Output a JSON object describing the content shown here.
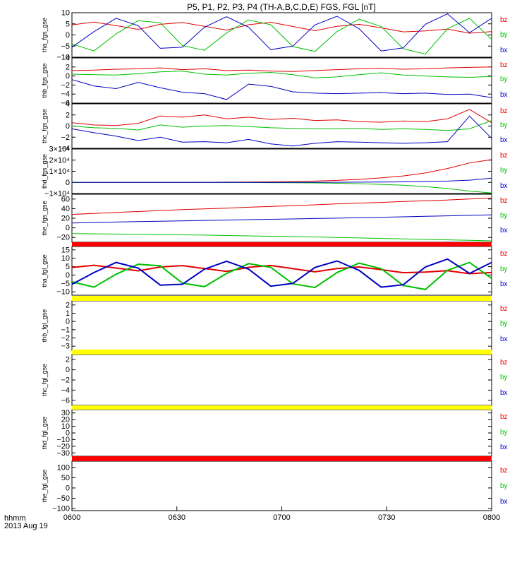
{
  "chart_data": {
    "type": "line",
    "title": "P5, P1, P2, P3, P4 (TH-A,B,C,D,E) FGS, FGL [nT]",
    "x_axis": {
      "label_line1": "hhmm",
      "label_line2": "2013 Aug 19",
      "range": [
        "06:00",
        "08:00"
      ],
      "ticks": [
        "0600",
        "0630",
        "0700",
        "0730",
        "0800"
      ]
    },
    "panels": [
      {
        "ylabel": "tha_fgs_gse",
        "ylim": [
          -10,
          10
        ],
        "ytick_values": [
          -10,
          -5,
          0,
          5,
          10
        ],
        "ytick_labels": [
          "−10",
          "−5",
          "0",
          "5",
          "10"
        ],
        "series": [
          {
            "name": "bz",
            "color": "#e00000",
            "values": [
              4.5,
              5.8,
              4.2,
              2.5,
              4.8,
              5.6,
              3.9,
              2.2,
              4.6,
              5.7,
              3.8,
              1.9,
              3.9,
              4.8,
              3.2,
              1.4,
              1.8,
              2.6,
              0.8,
              1.5
            ]
          },
          {
            "name": "by",
            "color": "#00c000",
            "values": [
              -4.0,
              -7.2,
              0.5,
              6.4,
              5.5,
              -4.8,
              -6.9,
              0.9,
              6.8,
              4.6,
              -5.2,
              -7.4,
              1.5,
              7.1,
              3.8,
              -6.2,
              -8.6,
              2.8,
              7.5,
              -2.0
            ]
          },
          {
            "name": "bx",
            "color": "#0000c0",
            "values": [
              -5.5,
              1.5,
              7.5,
              4.2,
              -6.0,
              -5.5,
              3.5,
              8.2,
              3.5,
              -6.6,
              -5.0,
              4.5,
              8.4,
              2.8,
              -7.2,
              -5.8,
              4.8,
              9.5,
              1.0,
              7.5
            ]
          }
        ]
      },
      {
        "ylabel": "thb_fgs_gse",
        "ylim": [
          -6,
          4
        ],
        "ytick_values": [
          -6,
          -4,
          -2,
          0,
          2,
          4
        ],
        "ytick_labels": [
          "−6",
          "−4",
          "−2",
          "0",
          "2",
          "4"
        ],
        "series": [
          {
            "name": "bz",
            "color": "#e00000",
            "values": [
              1.2,
              1.3,
              1.5,
              1.6,
              1.8,
              1.4,
              1.6,
              1.2,
              1.3,
              1.1,
              1.0,
              1.2,
              1.4,
              1.6,
              1.7,
              1.5,
              1.6,
              1.8,
              1.9,
              2.0
            ]
          },
          {
            "name": "by",
            "color": "#00c000",
            "values": [
              0.4,
              0.3,
              0.2,
              0.5,
              0.9,
              1.1,
              0.4,
              0.2,
              0.6,
              0.8,
              0.3,
              -0.4,
              -0.2,
              0.3,
              0.7,
              0.2,
              0.0,
              -0.2,
              -0.3,
              -0.1
            ]
          },
          {
            "name": "bx",
            "color": "#0000c0",
            "values": [
              -0.8,
              -2.2,
              -2.8,
              -1.4,
              -2.6,
              -3.6,
              -3.9,
              -5.2,
              -1.8,
              -2.3,
              -3.5,
              -3.8,
              -3.9,
              -3.8,
              -3.7,
              -3.9,
              -3.8,
              -4.1,
              -4.0,
              -4.8
            ]
          }
        ]
      },
      {
        "ylabel": "thc_fgs_gse",
        "ylim": [
          -4,
          4
        ],
        "ytick_values": [
          -4,
          -2,
          0,
          2,
          4
        ],
        "ytick_labels": [
          "−4",
          "−2",
          "0",
          "2",
          "4"
        ],
        "series": [
          {
            "name": "bz",
            "color": "#e00000",
            "values": [
              0.6,
              0.2,
              0.1,
              0.5,
              1.8,
              1.6,
              2.0,
              1.3,
              1.6,
              1.2,
              1.4,
              1.0,
              1.1,
              0.8,
              0.7,
              0.9,
              0.8,
              1.3,
              3.0,
              0.6
            ]
          },
          {
            "name": "by",
            "color": "#00c000",
            "values": [
              0.0,
              -0.3,
              -0.4,
              -0.7,
              0.2,
              -0.2,
              0.0,
              0.1,
              -0.1,
              -0.3,
              -0.4,
              -0.5,
              -0.5,
              -0.4,
              -0.6,
              -0.5,
              -0.6,
              -0.8,
              -0.5,
              1.0
            ]
          },
          {
            "name": "bx",
            "color": "#0000c0",
            "values": [
              -0.5,
              -1.2,
              -1.8,
              -2.6,
              -2.0,
              -2.9,
              -2.8,
              -3.0,
              -2.4,
              -3.2,
              -3.6,
              -3.1,
              -2.8,
              -2.9,
              -3.0,
              -3.1,
              -3.0,
              -2.8,
              1.8,
              -2.2
            ]
          }
        ]
      },
      {
        "ylabel": "thd_fgs_gse",
        "ylim": [
          -1,
          3
        ],
        "ytick_values": [
          -1,
          0,
          1,
          2,
          3
        ],
        "ytick_labels": [
          "−1×10⁴",
          "0",
          "1×10⁴",
          "2×10⁴",
          "3×10⁴"
        ],
        "series": [
          {
            "name": "bz",
            "color": "#e00000",
            "values": [
              0,
              0,
              0,
              0,
              0,
              0,
              0.01,
              0.02,
              0.03,
              0.05,
              0.08,
              0.12,
              0.18,
              0.27,
              0.4,
              0.58,
              0.85,
              1.25,
              1.75,
              2.05
            ]
          },
          {
            "name": "by",
            "color": "#00c000",
            "values": [
              0,
              0,
              0,
              0,
              0,
              0,
              0,
              -0.01,
              -0.01,
              -0.02,
              -0.03,
              -0.05,
              -0.08,
              -0.12,
              -0.18,
              -0.26,
              -0.38,
              -0.55,
              -0.78,
              -0.95
            ]
          },
          {
            "name": "bx",
            "color": "#0000c0",
            "values": [
              0,
              0,
              0,
              0,
              0,
              0,
              0,
              0,
              0,
              0,
              0,
              0.01,
              0.01,
              0.02,
              0.03,
              0.05,
              0.08,
              0.12,
              0.2,
              0.38
            ]
          }
        ]
      },
      {
        "ylabel": "the_fgs_gse",
        "ylim": [
          -30,
          70
        ],
        "ytick_values": [
          -20,
          0,
          20,
          40,
          60
        ],
        "ytick_labels": [
          "−20",
          "0",
          "20",
          "40",
          "60"
        ],
        "series": [
          {
            "name": "bz",
            "color": "#e00000",
            "values": [
              28,
              30,
              32,
              34,
              36,
              38,
              39.5,
              41,
              43,
              44.5,
              46,
              48,
              50,
              51.5,
              53,
              55,
              56.5,
              58,
              60,
              62
            ]
          },
          {
            "name": "by",
            "color": "#00c000",
            "values": [
              -12,
              -12.5,
              -13,
              -13.5,
              -14,
              -14.5,
              -15.2,
              -16,
              -16.8,
              -17.5,
              -18.2,
              -19,
              -20,
              -21,
              -22,
              -23,
              -24,
              -25,
              -26,
              -27
            ]
          },
          {
            "name": "bx",
            "color": "#0000c0",
            "values": [
              10,
              11,
              12,
              13,
              13.8,
              14.6,
              15.4,
              16.2,
              17,
              17.8,
              18.6,
              19.4,
              20.2,
              21,
              22,
              23,
              24,
              25,
              26,
              27
            ]
          }
        ]
      },
      {
        "ylabel": "tha_fgl_gse",
        "ylim": [
          -12,
          17
        ],
        "ytick_values": [
          -10,
          -5,
          0,
          5,
          10,
          15
        ],
        "ytick_labels": [
          "−10",
          "−5",
          "0",
          "5",
          "10",
          "15"
        ],
        "series": [
          {
            "name": "bz",
            "color": "#e00000",
            "values": [
              4.5,
              5.8,
              4.2,
              2.5,
              4.8,
              5.6,
              3.9,
              2.2,
              4.6,
              5.7,
              3.8,
              1.9,
              3.9,
              4.8,
              3.2,
              1.4,
              1.8,
              2.6,
              0.8,
              1.5
            ]
          },
          {
            "name": "by",
            "color": "#00c000",
            "values": [
              -4.0,
              -7.2,
              0.5,
              6.4,
              5.5,
              -4.8,
              -6.9,
              0.9,
              6.8,
              4.6,
              -5.2,
              -7.4,
              1.5,
              7.1,
              3.8,
              -6.2,
              -8.6,
              2.8,
              7.5,
              -2.0
            ]
          },
          {
            "name": "bx",
            "color": "#0000c0",
            "values": [
              -5.5,
              1.5,
              7.5,
              4.2,
              -6.0,
              -5.5,
              3.5,
              8.2,
              3.5,
              -6.6,
              -5.0,
              4.5,
              8.4,
              2.8,
              -7.2,
              -5.8,
              4.8,
              9.5,
              1.0,
              7.5
            ]
          }
        ]
      },
      {
        "ylabel": "thb_fgl_gse",
        "ylim": [
          -3.5,
          2.5
        ],
        "ytick_values": [
          -3,
          -2,
          -1,
          0,
          1,
          2
        ],
        "ytick_labels": [
          "−3",
          "−2",
          "−1",
          "0",
          "1",
          "2"
        ],
        "series": []
      },
      {
        "ylabel": "thc_fgl_gse",
        "ylim": [
          -7,
          3
        ],
        "ytick_values": [
          -6,
          -4,
          -2,
          0,
          2
        ],
        "ytick_labels": [
          "−6",
          "−4",
          "−2",
          "0",
          "2"
        ],
        "series": []
      },
      {
        "ylabel": "thd_fgl_gse",
        "ylim": [
          -35,
          35
        ],
        "ytick_values": [
          -30,
          -20,
          -10,
          0,
          10,
          20,
          30
        ],
        "ytick_labels": [
          "−30",
          "−20",
          "−10",
          "0",
          "10",
          "20",
          "30"
        ],
        "series": []
      },
      {
        "ylabel": "the_fgl_gse",
        "ylim": [
          -110,
          130
        ],
        "ytick_values": [
          -100,
          -50,
          0,
          50,
          100
        ],
        "ytick_labels": [
          "−100",
          "−50",
          "0",
          "50",
          "100"
        ],
        "series": []
      }
    ],
    "legend": [
      {
        "name": "bz",
        "color": "#e00000"
      },
      {
        "name": "by",
        "color": "#00c000"
      },
      {
        "name": "bx",
        "color": "#0000c0"
      }
    ],
    "status_bars": [
      "#ff0000",
      "#ffff00",
      "#ffff00",
      "#ffff00",
      "#ff0000"
    ]
  }
}
